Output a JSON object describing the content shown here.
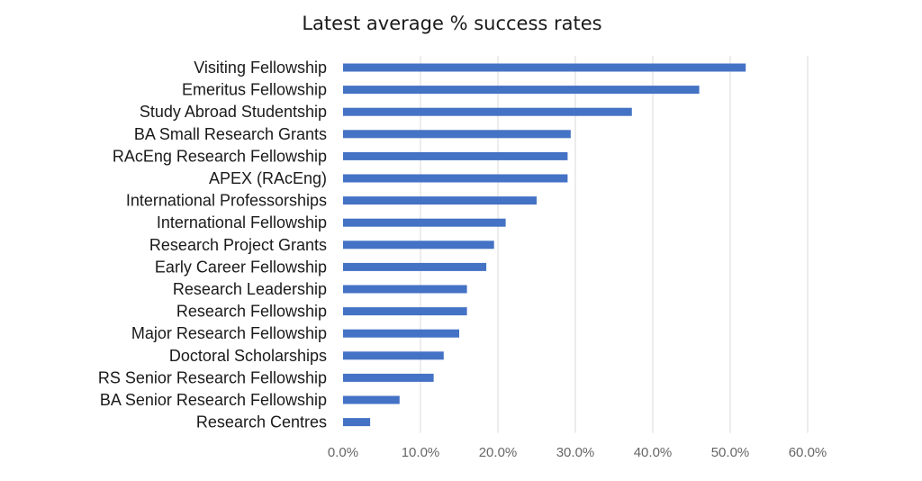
{
  "chart_data": {
    "type": "bar",
    "orientation": "horizontal",
    "title": "Latest average % success rates",
    "xlabel": "",
    "ylabel": "",
    "xlim": [
      0,
      60
    ],
    "x_ticks": [
      "0.0%",
      "10.0%",
      "20.0%",
      "30.0%",
      "40.0%",
      "50.0%",
      "60.0%"
    ],
    "grid": "vertical",
    "categories": [
      "Visiting Fellowship",
      "Emeritus Fellowship",
      "Study Abroad Studentship",
      "BA Small Research Grants",
      "RAcEng Research Fellowship",
      "APEX (RAcEng)",
      "International Professorships",
      "International Fellowship",
      "Research Project Grants",
      "Early Career Fellowship",
      "Research Leadership",
      "Research Fellowship",
      "Major Research Fellowship",
      "Doctoral Scholarships",
      "RS Senior Research Fellowship",
      "BA Senior Research Fellowship",
      "Research Centres"
    ],
    "values": [
      52.0,
      46.0,
      37.3,
      29.4,
      29.0,
      29.0,
      25.0,
      21.0,
      19.5,
      18.5,
      16.0,
      16.0,
      15.0,
      13.0,
      11.7,
      7.3,
      3.5
    ],
    "bar_color": "#4472c4"
  }
}
